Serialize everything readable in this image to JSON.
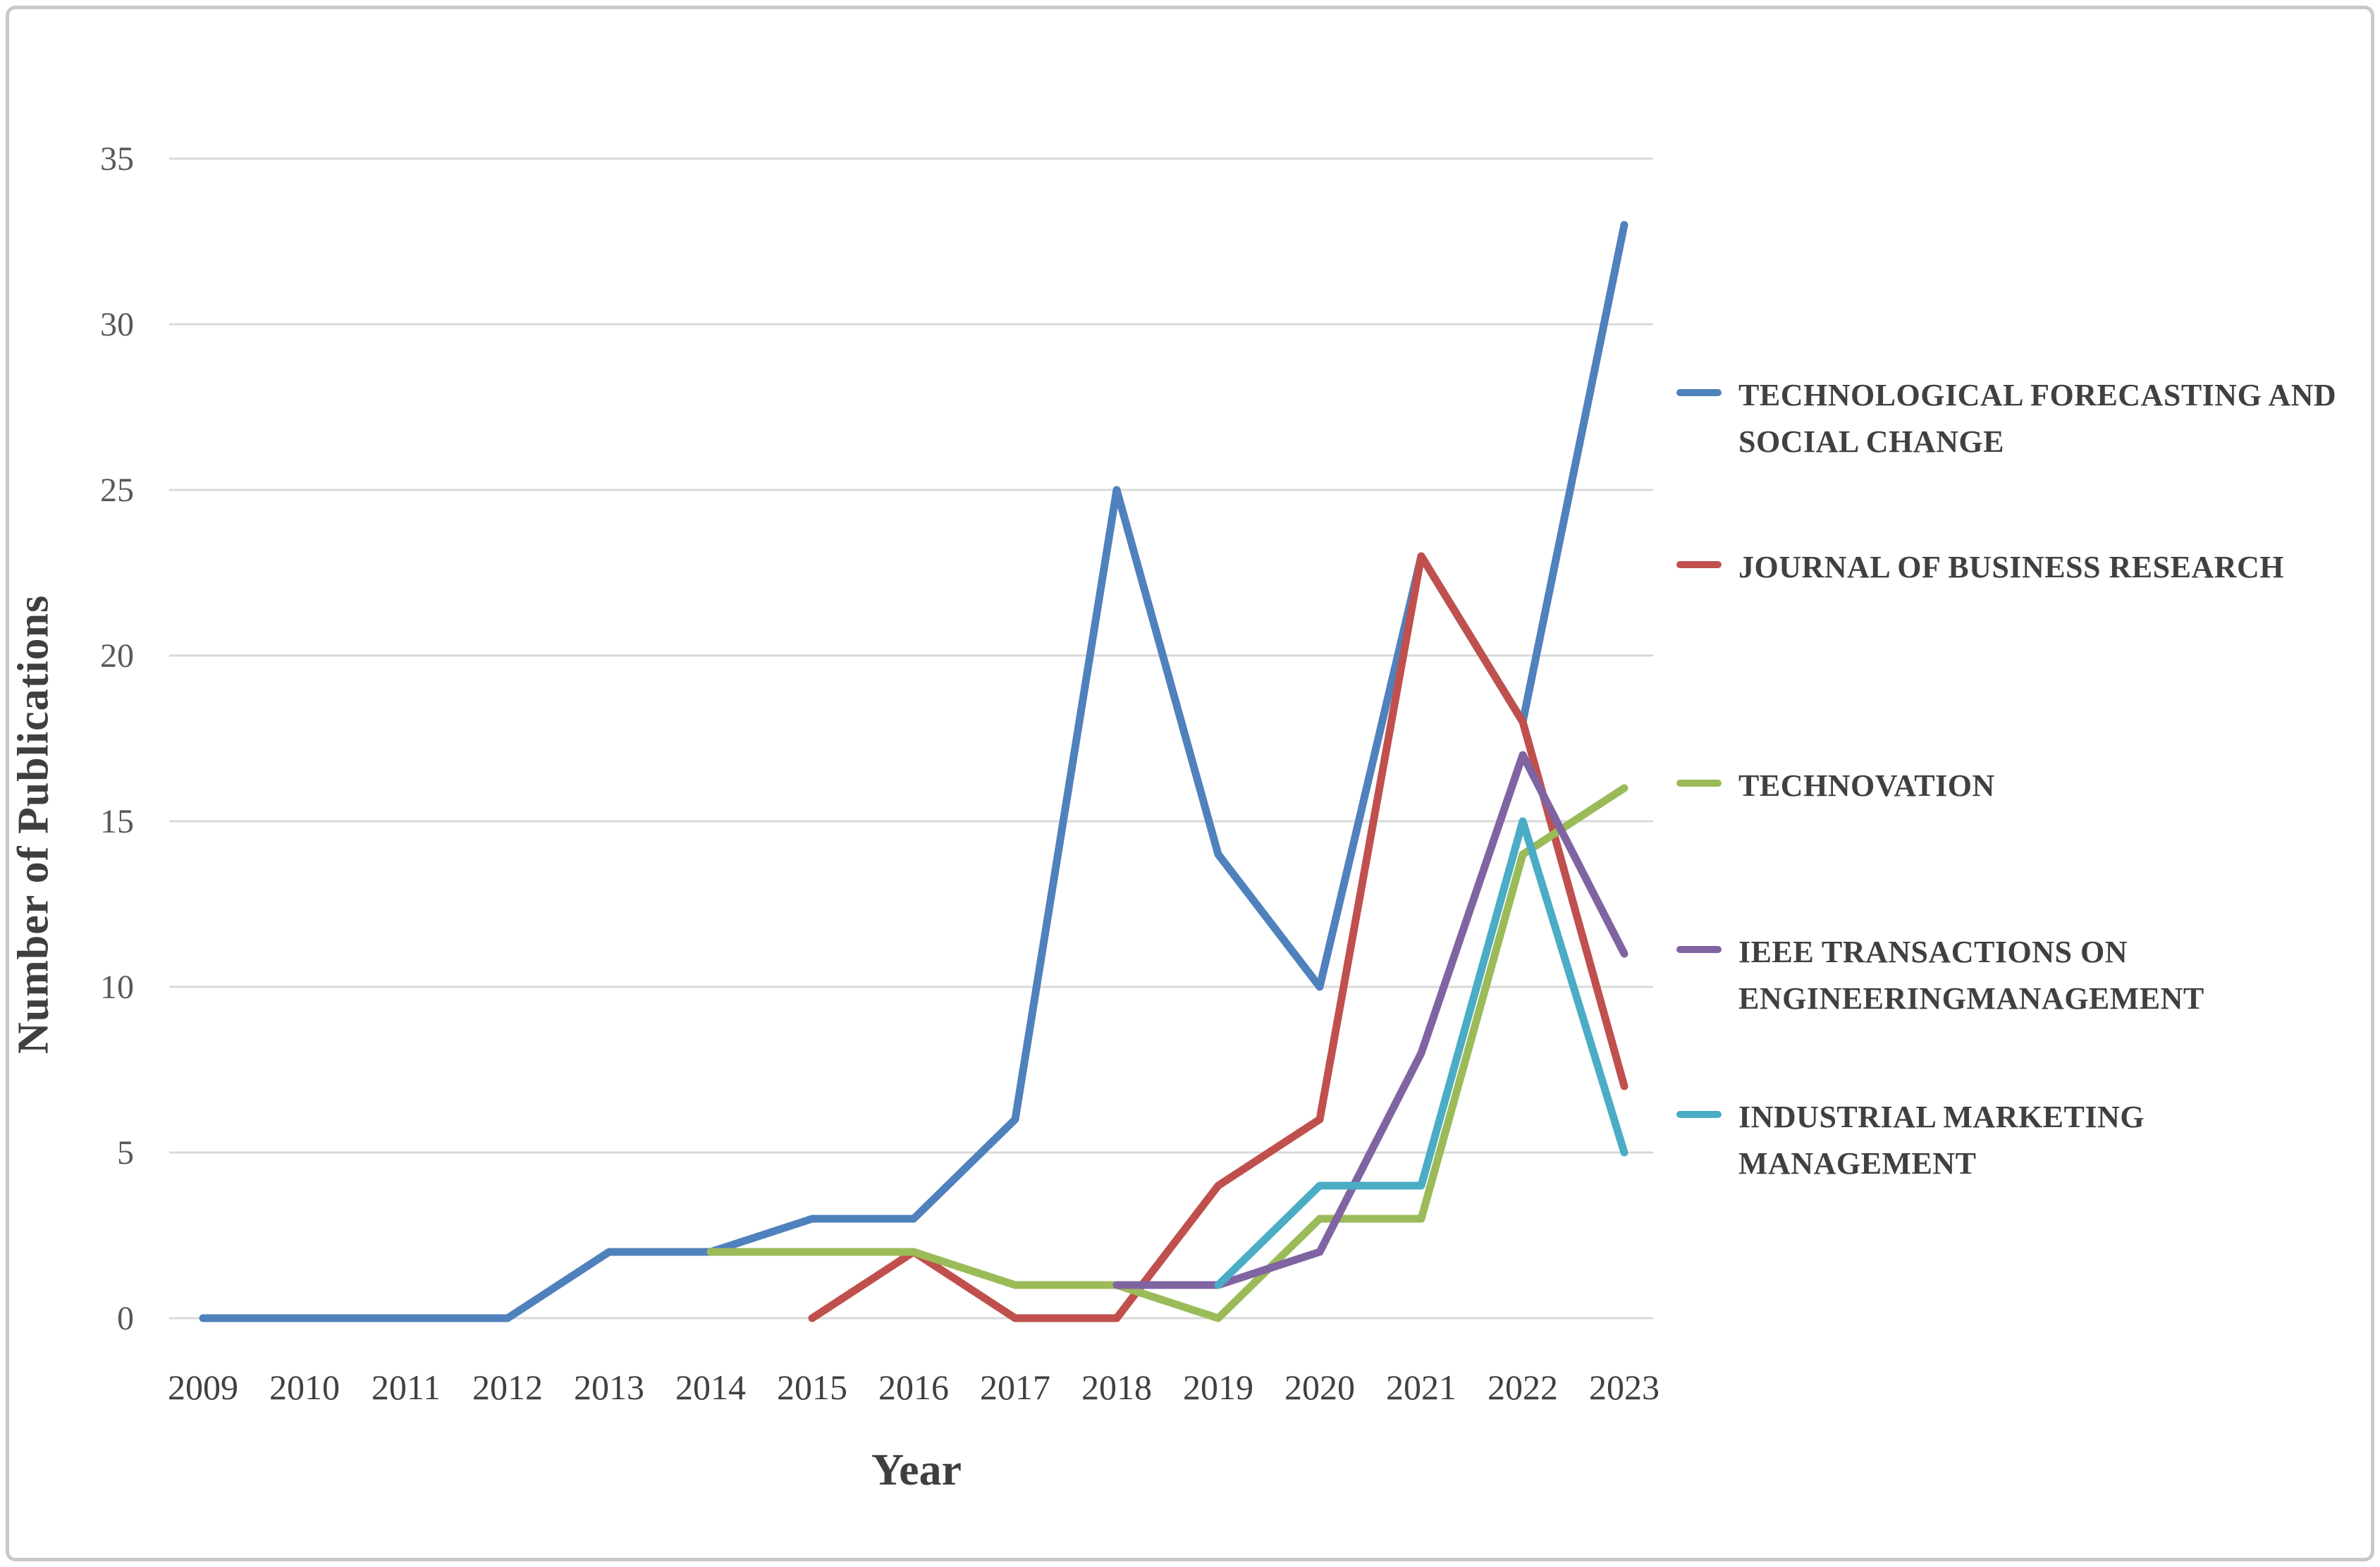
{
  "chart_data": {
    "type": "line",
    "categories": [
      "2009",
      "2010",
      "2011",
      "2012",
      "2013",
      "2014",
      "2015",
      "2016",
      "2017",
      "2018",
      "2019",
      "2020",
      "2021",
      "2022",
      "2023"
    ],
    "series": [
      {
        "name": "TECHNOLOGICAL FORECASTING AND SOCIAL CHANGE",
        "color": "#4F81BD",
        "values": [
          0,
          0,
          0,
          0,
          2,
          2,
          3,
          3,
          6,
          25,
          14,
          10,
          23,
          18,
          33
        ]
      },
      {
        "name": "JOURNAL OF BUSINESS RESEARCH",
        "color": "#C0504D",
        "values": [
          null,
          null,
          null,
          null,
          null,
          null,
          0,
          2,
          0,
          0,
          4,
          6,
          23,
          18,
          7
        ]
      },
      {
        "name": "TECHNOVATION",
        "color": "#9BBB59",
        "values": [
          null,
          null,
          null,
          null,
          null,
          2,
          2,
          2,
          1,
          1,
          0,
          3,
          3,
          14,
          16
        ]
      },
      {
        "name": "IEEE TRANSACTIONS ON ENGINEERINGMANAGEMENT",
        "color": "#8064A2",
        "values": [
          null,
          null,
          null,
          null,
          null,
          null,
          null,
          null,
          null,
          1,
          1,
          2,
          8,
          17,
          11
        ]
      },
      {
        "name": "INDUSTRIAL MARKETING MANAGEMENT",
        "color": "#4BACC6",
        "values": [
          null,
          null,
          null,
          null,
          null,
          null,
          null,
          null,
          null,
          null,
          1,
          4,
          4,
          15,
          5
        ]
      }
    ],
    "title": "",
    "xlabel": "Year",
    "ylabel": "Number of Publications",
    "ylim": [
      0,
      35
    ],
    "yticks": [
      0,
      5,
      10,
      15,
      20,
      25,
      30,
      35
    ],
    "grid": "horizontal",
    "legend_position": "right"
  },
  "axes": {
    "x_title": "Year",
    "y_title": "Number of Publications"
  },
  "colors": {
    "gridline": "#D9D9D9",
    "tick_label": "#595959",
    "text": "#404040",
    "frame_border": "#C8C8C8"
  }
}
